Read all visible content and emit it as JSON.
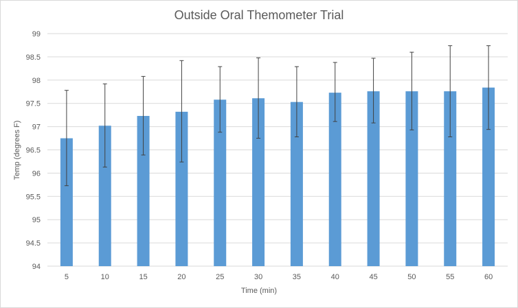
{
  "chart_data": {
    "type": "bar",
    "title": "Outside Oral Themometer Trial",
    "xlabel": "Time (min)",
    "ylabel": "Temp (degrees F)",
    "categories": [
      "5",
      "10",
      "15",
      "20",
      "25",
      "30",
      "35",
      "40",
      "45",
      "50",
      "55",
      "60"
    ],
    "values": [
      96.75,
      97.02,
      97.23,
      97.32,
      97.58,
      97.61,
      97.53,
      97.73,
      97.76,
      97.76,
      97.76,
      97.84
    ],
    "error_high": [
      97.78,
      97.92,
      98.08,
      98.42,
      98.29,
      98.48,
      98.29,
      98.38,
      98.47,
      98.6,
      98.74,
      98.74
    ],
    "error_low": [
      95.73,
      96.13,
      96.39,
      96.24,
      96.88,
      96.75,
      96.78,
      97.11,
      97.08,
      96.93,
      96.78,
      96.94
    ],
    "ylim": [
      94,
      99
    ],
    "yticks": [
      "94",
      "94.5",
      "95",
      "95.5",
      "96",
      "96.5",
      "97",
      "97.5",
      "98",
      "98.5",
      "99"
    ],
    "grid": true,
    "bar_color": "#5b9bd5",
    "error_bar_color": "#404040",
    "grid_color": "#d9d9d9"
  }
}
